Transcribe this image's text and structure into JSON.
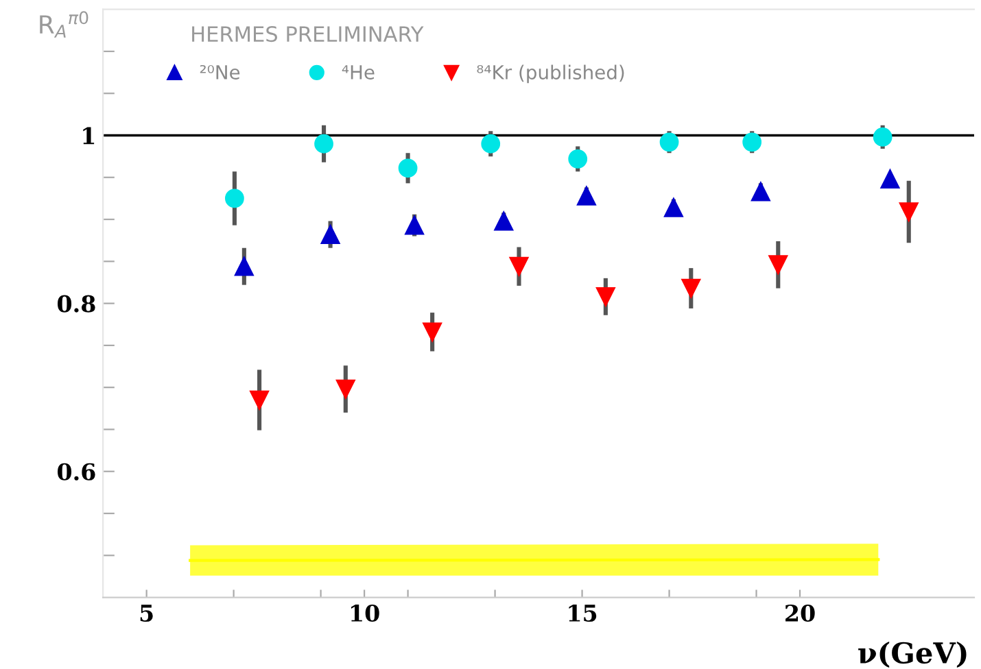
{
  "chart_data": {
    "type": "scatter",
    "title": "HERMES PRELIMINARY",
    "xlabel": "ν(GeV)",
    "ylabel": "R$_{A}$$^{π0}$",
    "series": [
      {
        "name": "²⁰Ne",
        "color": "#0000cc",
        "marker": "triangle",
        "x": [
          7.24,
          9.22,
          11.15,
          13.2,
          15.1,
          17.1,
          19.1,
          22.07
        ],
        "values": [
          0.844,
          0.882,
          0.893,
          0.898,
          0.928,
          0.914,
          0.933,
          0.948
        ],
        "errors": [
          0.022,
          0.016,
          0.013,
          0.01,
          0.01,
          0.01,
          0.01,
          null
        ]
      },
      {
        "name": "⁴He",
        "color": "#00e5e5",
        "marker": "circle",
        "x": [
          7.02,
          9.07,
          11.0,
          12.9,
          14.9,
          17.0,
          18.9,
          21.9
        ],
        "values": [
          0.925,
          0.99,
          0.961,
          0.99,
          0.972,
          0.992,
          0.992,
          0.998
        ],
        "errors": [
          0.032,
          0.022,
          0.018,
          0.015,
          0.015,
          0.013,
          0.013,
          0.014
        ]
      },
      {
        "name": "⁸⁴Kr (published)",
        "color": "#ff0000",
        "marker": "triangle_down",
        "x": [
          7.59,
          9.57,
          11.56,
          13.55,
          15.54,
          17.5,
          19.5,
          22.5
        ],
        "values": [
          0.685,
          0.698,
          0.766,
          0.844,
          0.808,
          0.818,
          0.846,
          0.909
        ],
        "errors": [
          0.036,
          0.028,
          0.023,
          0.023,
          0.022,
          0.024,
          0.028,
          0.037
        ]
      },
      {
        "type": "line",
        "color": "#ffff00",
        "marker": "none",
        "x": [
          6.0,
          21.8
        ],
        "values": [
          0.494,
          0.495
        ],
        "lower": [
          0.476,
          0.476
        ],
        "upper": [
          0.512,
          0.514
        ]
      }
    ],
    "ref_lines": [
      {
        "axis": "y",
        "value": 1,
        "color": "#000000"
      }
    ],
    "xlim": [
      4,
      24
    ],
    "xticks": [
      5,
      {
        "value": 7,
        "label": null
      },
      {
        "value": 9,
        "label": null
      },
      10,
      {
        "value": 11,
        "label": null
      },
      {
        "value": 13,
        "label": null
      },
      15,
      {
        "value": 17,
        "label": null
      },
      {
        "value": 19,
        "label": null
      },
      20
    ],
    "ylim": [
      0.45,
      1.15
    ],
    "yticks": [
      {
        "value": 0.5,
        "label": null
      },
      {
        "value": 0.55,
        "label": null
      },
      0.6,
      {
        "value": 0.65,
        "label": null
      },
      {
        "value": 0.7,
        "label": null
      },
      {
        "value": 0.75,
        "label": null
      },
      0.8,
      {
        "value": 0.85,
        "label": null
      },
      {
        "value": 0.9,
        "label": null
      },
      {
        "value": 0.95,
        "label": null
      },
      1,
      {
        "value": 1.05,
        "label": null
      },
      {
        "value": 1.1,
        "label": null
      }
    ],
    "grid": false,
    "legend": "top"
  }
}
